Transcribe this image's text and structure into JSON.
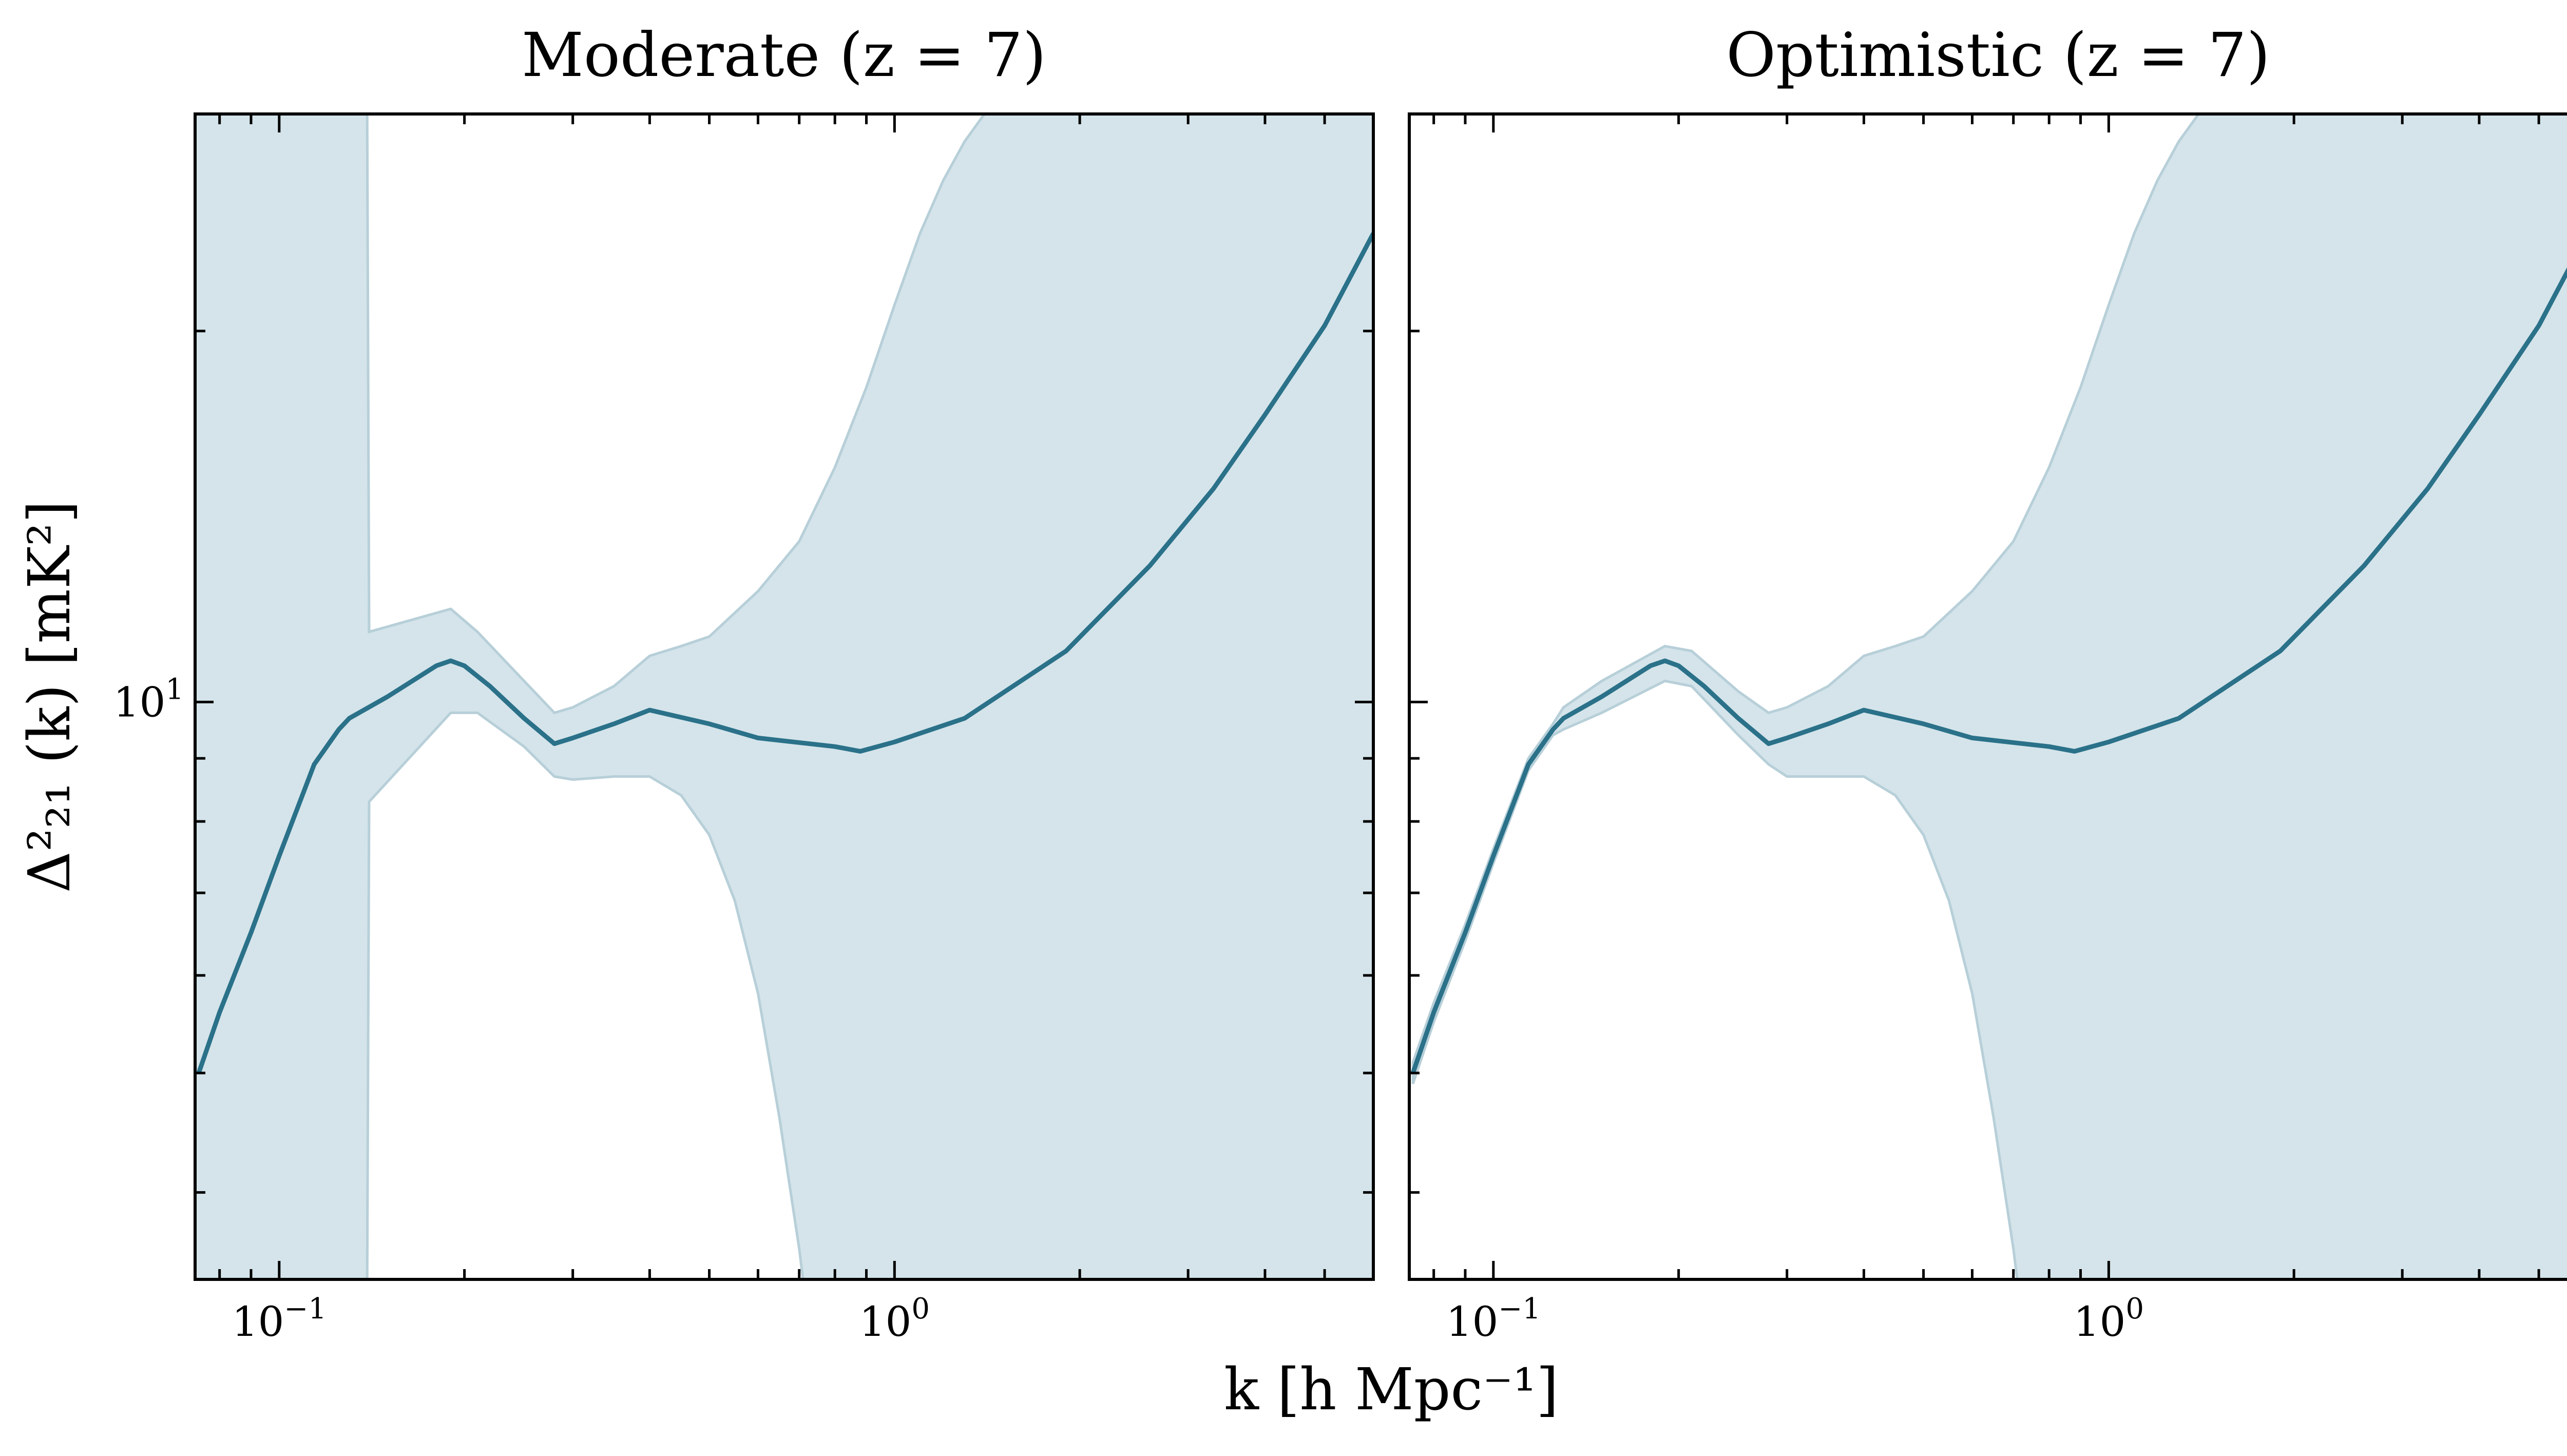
{
  "figure": {
    "xlabel": "k [h Mpc⁻¹]",
    "ylabel": "Δ²₂₁ (k) [mK²]",
    "colors": {
      "line": "#2a7189",
      "band_fill": "#d4e4ea",
      "band_edge": "#b7cfd8"
    }
  },
  "chart_data": [
    {
      "type": "area",
      "title": "Moderate (z = 7)",
      "x_scale": "log",
      "y_scale": "log",
      "xlim": [
        0.073,
        6.0
      ],
      "ylim": [
        3.4,
        30
      ],
      "grid": false,
      "x_ticks": [
        {
          "value": 0.1,
          "base": "10",
          "exp": "−1"
        },
        {
          "value": 1.0,
          "base": "10",
          "exp": "0"
        }
      ],
      "y_ticks": [
        {
          "value": 10,
          "base": "10",
          "exp": "1"
        }
      ],
      "series": [
        {
          "role": "median",
          "x": [
            0.074,
            0.08,
            0.09,
            0.1,
            0.114,
            0.125,
            0.13,
            0.15,
            0.18,
            0.19,
            0.2,
            0.22,
            0.25,
            0.28,
            0.3,
            0.35,
            0.4,
            0.5,
            0.6,
            0.8,
            0.88,
            1.0,
            1.3,
            1.9,
            2.6,
            3.3,
            4.0,
            5.0,
            6.0
          ],
          "y": [
            5.0,
            5.6,
            6.5,
            7.5,
            8.9,
            9.5,
            9.7,
            10.1,
            10.7,
            10.8,
            10.7,
            10.3,
            9.7,
            9.25,
            9.35,
            9.6,
            9.85,
            9.6,
            9.35,
            9.2,
            9.12,
            9.28,
            9.7,
            11.0,
            12.9,
            14.9,
            17.1,
            20.2,
            24.0
          ]
        },
        {
          "role": "upper",
          "x": [
            0.073,
            0.139,
            0.14,
            0.19,
            0.21,
            0.25,
            0.28,
            0.3,
            0.35,
            0.4,
            0.45,
            0.5,
            0.6,
            0.7,
            0.8,
            0.9,
            1.0,
            1.1,
            1.2,
            1.3,
            1.4
          ],
          "y": [
            30,
            30,
            11.4,
            11.9,
            11.4,
            10.4,
            9.8,
            9.9,
            10.3,
            10.9,
            11.1,
            11.3,
            12.3,
            13.5,
            15.5,
            18.0,
            21.0,
            24.0,
            26.5,
            28.5,
            30
          ]
        },
        {
          "role": "lower",
          "x": [
            0.073,
            0.139,
            0.14,
            0.19,
            0.21,
            0.25,
            0.28,
            0.3,
            0.35,
            0.4,
            0.45,
            0.5,
            0.55,
            0.6,
            0.65,
            0.7,
            0.71
          ],
          "y": [
            3.4,
            3.4,
            8.3,
            9.8,
            9.8,
            9.2,
            8.7,
            8.65,
            8.7,
            8.7,
            8.4,
            7.8,
            6.9,
            5.8,
            4.6,
            3.6,
            3.4
          ]
        }
      ]
    },
    {
      "type": "area",
      "title": "Optimistic (z = 7)",
      "x_scale": "log",
      "y_scale": "log",
      "xlim": [
        0.073,
        6.0
      ],
      "ylim": [
        3.4,
        30
      ],
      "grid": false,
      "x_ticks": [
        {
          "value": 0.1,
          "base": "10",
          "exp": "−1"
        },
        {
          "value": 1.0,
          "base": "10",
          "exp": "0"
        }
      ],
      "y_ticks": [
        {
          "value": 10,
          "base": "10",
          "exp": "1"
        }
      ],
      "series": [
        {
          "role": "median",
          "x": [
            0.074,
            0.08,
            0.09,
            0.1,
            0.114,
            0.125,
            0.13,
            0.15,
            0.18,
            0.19,
            0.2,
            0.22,
            0.25,
            0.28,
            0.3,
            0.35,
            0.4,
            0.5,
            0.6,
            0.8,
            0.88,
            1.0,
            1.3,
            1.9,
            2.6,
            3.3,
            4.0,
            5.0,
            6.0
          ],
          "y": [
            5.0,
            5.6,
            6.5,
            7.5,
            8.9,
            9.5,
            9.7,
            10.1,
            10.7,
            10.8,
            10.7,
            10.3,
            9.7,
            9.25,
            9.35,
            9.6,
            9.85,
            9.6,
            9.35,
            9.2,
            9.12,
            9.28,
            9.7,
            11.0,
            12.9,
            14.9,
            17.1,
            20.2,
            24.0
          ]
        },
        {
          "role": "upper",
          "x": [
            0.074,
            0.08,
            0.09,
            0.1,
            0.114,
            0.125,
            0.13,
            0.15,
            0.19,
            0.21,
            0.25,
            0.28,
            0.3,
            0.35,
            0.4,
            0.45,
            0.5,
            0.6,
            0.7,
            0.8,
            0.9,
            1.0,
            1.1,
            1.2,
            1.3,
            1.4
          ],
          "y": [
            5.1,
            5.7,
            6.6,
            7.6,
            9.0,
            9.6,
            9.9,
            10.4,
            11.1,
            11.0,
            10.2,
            9.8,
            9.9,
            10.3,
            10.9,
            11.1,
            11.3,
            12.3,
            13.5,
            15.5,
            18.0,
            21.0,
            24.0,
            26.5,
            28.5,
            30
          ]
        },
        {
          "role": "lower",
          "x": [
            0.074,
            0.08,
            0.09,
            0.1,
            0.114,
            0.125,
            0.13,
            0.15,
            0.19,
            0.21,
            0.25,
            0.28,
            0.3,
            0.35,
            0.4,
            0.45,
            0.5,
            0.55,
            0.6,
            0.65,
            0.7,
            0.71
          ],
          "y": [
            4.9,
            5.5,
            6.4,
            7.4,
            8.8,
            9.4,
            9.5,
            9.8,
            10.4,
            10.3,
            9.4,
            8.9,
            8.7,
            8.7,
            8.7,
            8.4,
            7.8,
            6.9,
            5.8,
            4.6,
            3.6,
            3.4
          ]
        }
      ]
    }
  ]
}
